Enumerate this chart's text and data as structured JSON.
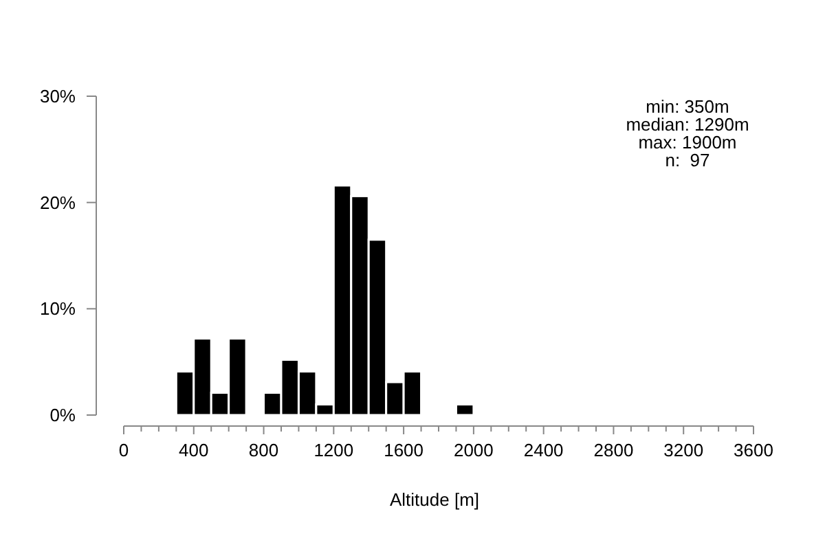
{
  "chart_data": {
    "type": "histogram",
    "xlabel": "Altitude [m]",
    "bins": [
      300,
      400,
      500,
      600,
      700,
      800,
      900,
      1000,
      1100,
      1200,
      1300,
      1400,
      1500,
      1600,
      1700,
      1800,
      1900,
      2000
    ],
    "values": [
      4.1,
      7.2,
      2.1,
      7.2,
      0,
      2.1,
      5.2,
      4.1,
      1,
      21.6,
      20.6,
      16.5,
      3.1,
      4.1,
      0,
      0,
      1
    ],
    "color": "#000000",
    "xlim": [
      0,
      3600
    ],
    "xticks": [
      0,
      {
        "value": 100,
        "label": null
      },
      {
        "value": 200,
        "label": null
      },
      {
        "value": 300,
        "label": null
      },
      400,
      {
        "value": 500,
        "label": null
      },
      {
        "value": 600,
        "label": null
      },
      {
        "value": 700,
        "label": null
      },
      800,
      {
        "value": 900,
        "label": null
      },
      {
        "value": 1000,
        "label": null
      },
      {
        "value": 1100,
        "label": null
      },
      1200,
      {
        "value": 1300,
        "label": null
      },
      {
        "value": 1400,
        "label": null
      },
      {
        "value": 1500,
        "label": null
      },
      1600,
      {
        "value": 1700,
        "label": null
      },
      {
        "value": 1800,
        "label": null
      },
      {
        "value": 1900,
        "label": null
      },
      2000,
      {
        "value": 2100,
        "label": null
      },
      {
        "value": 2200,
        "label": null
      },
      {
        "value": 2300,
        "label": null
      },
      2400,
      {
        "value": 2500,
        "label": null
      },
      {
        "value": 2600,
        "label": null
      },
      {
        "value": 2700,
        "label": null
      },
      2800,
      {
        "value": 2900,
        "label": null
      },
      {
        "value": 3000,
        "label": null
      },
      {
        "value": 3100,
        "label": null
      },
      3200,
      {
        "value": 3300,
        "label": null
      },
      {
        "value": 3400,
        "label": null
      },
      {
        "value": 3500,
        "label": null
      },
      3600
    ],
    "ylim": [
      0,
      30
    ],
    "yticks": [
      {
        "value": 0,
        "label": "0%"
      },
      {
        "value": 10,
        "label": "10%"
      },
      {
        "value": 20,
        "label": "20%"
      },
      {
        "value": 30,
        "label": "30%"
      }
    ],
    "grid": false,
    "annotations": [
      "min: 350m\nmedian: 1290m\nmax: 1900m\nn:  97"
    ]
  }
}
